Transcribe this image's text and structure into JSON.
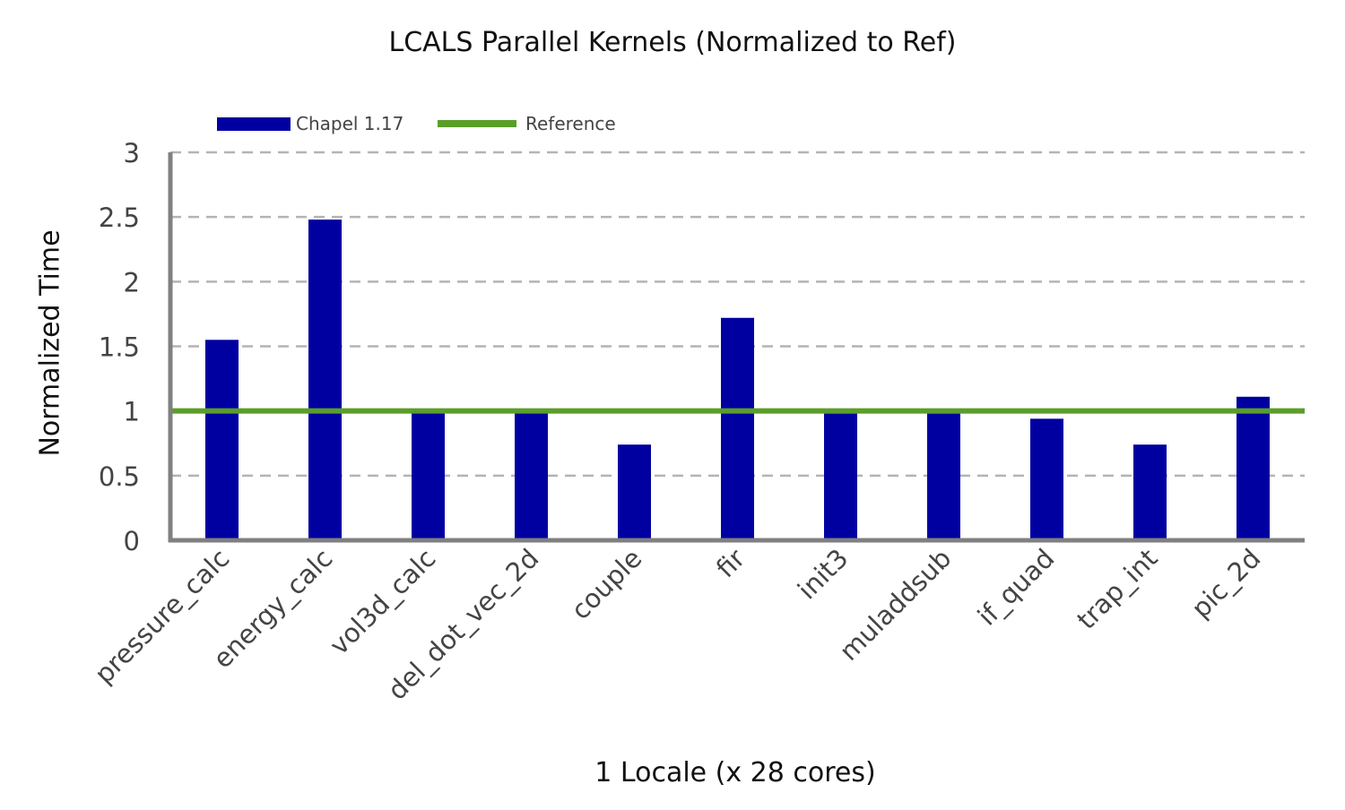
{
  "chart_data": {
    "type": "bar",
    "title": "LCALS  Parallel Kernels (Normalized to Ref)",
    "xlabel": "1 Locale (x 28 cores)",
    "ylabel": "Normalized Time",
    "categories": [
      "pressure_calc",
      "energy_calc",
      "vol3d_calc",
      "del_dot_vec_2d",
      "couple",
      "fir",
      "init3",
      "muladdsub",
      "if_quad",
      "trap_int",
      "pic_2d"
    ],
    "series": [
      {
        "name": "Chapel 1.17",
        "values": [
          1.55,
          2.48,
          0.99,
          1.0,
          0.74,
          1.72,
          0.98,
          0.98,
          0.94,
          0.74,
          1.11
        ],
        "color": "#0000a0"
      }
    ],
    "reference": {
      "name": "Reference",
      "value": 1,
      "color": "#5a9e2a"
    },
    "yticks": [
      "0",
      "0.5",
      "1",
      "1.5",
      "2",
      "2.5",
      "3"
    ],
    "ylim": [
      0,
      3
    ],
    "grid": true,
    "legend": "top-left"
  }
}
